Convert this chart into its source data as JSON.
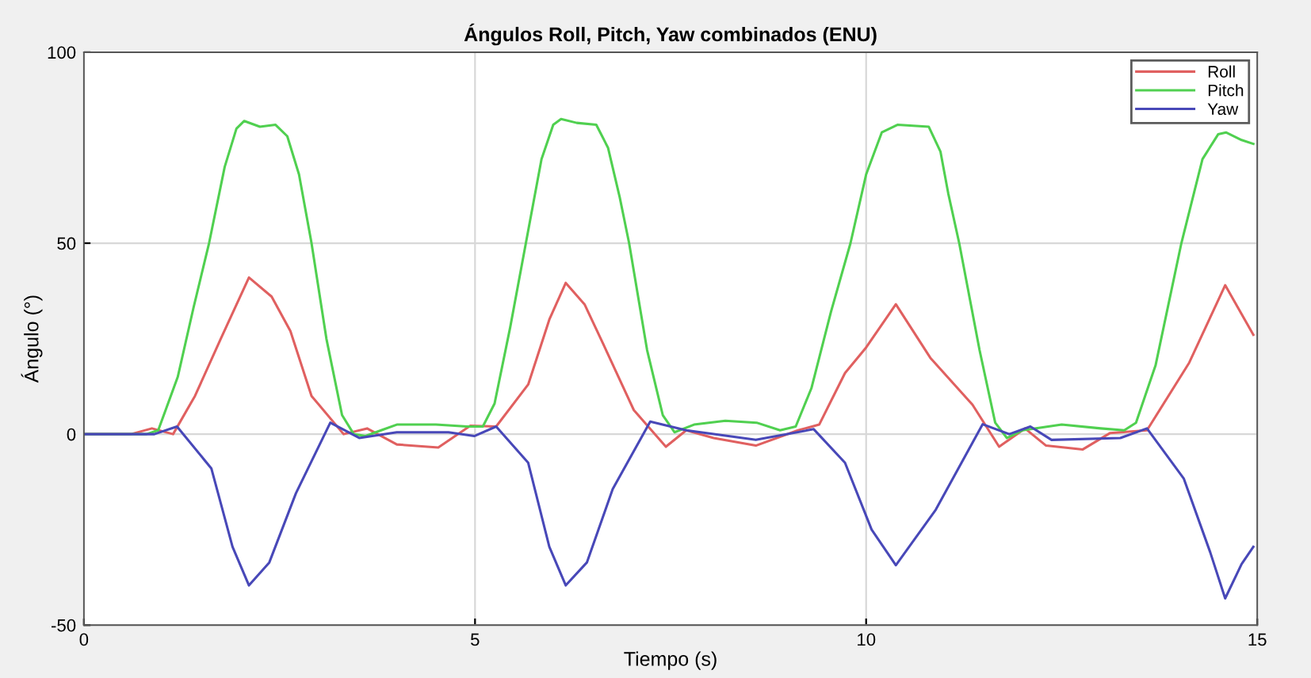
{
  "chart_data": {
    "type": "line",
    "title": "Ángulos Roll, Pitch, Yaw combinados (ENU)",
    "xlabel": "Tiempo (s)",
    "ylabel": "Ángulo (°)",
    "xlim": [
      0,
      15
    ],
    "ylim": [
      -50,
      100
    ],
    "xticks": [
      0,
      5,
      10,
      15
    ],
    "yticks": [
      -50,
      0,
      50,
      100
    ],
    "grid": true,
    "legend": "top right",
    "marker": "none",
    "line_style": "solid",
    "series": [
      {
        "name": "Roll",
        "color": "#e06060",
        "x": [
          0,
          0.6,
          0.87,
          1.14,
          1.42,
          1.75,
          2.11,
          2.4,
          2.64,
          2.91,
          3.32,
          3.62,
          4.0,
          4.53,
          4.94,
          5.27,
          5.68,
          5.95,
          6.16,
          6.4,
          6.63,
          7.03,
          7.44,
          7.7,
          8.05,
          8.59,
          9.13,
          9.4,
          9.73,
          10.0,
          10.38,
          10.82,
          11.36,
          11.7,
          12.03,
          12.3,
          12.77,
          13.12,
          13.59,
          14.13,
          14.59,
          14.95
        ],
        "values": [
          0,
          0,
          1.5,
          0,
          10,
          25,
          41,
          36,
          27,
          10,
          0,
          1.5,
          -2.7,
          -3.5,
          2.2,
          2,
          13,
          30,
          39.6,
          34,
          24,
          6.3,
          -3.3,
          1,
          -1,
          -3,
          1,
          2.5,
          16,
          22.7,
          34,
          20,
          7.7,
          -3.3,
          1.5,
          -3,
          -4,
          0.3,
          1,
          18.7,
          39,
          26
        ]
      },
      {
        "name": "Pitch",
        "color": "#50d050",
        "x": [
          0,
          0.8,
          0.95,
          1.2,
          1.4,
          1.6,
          1.8,
          1.95,
          2.05,
          2.25,
          2.45,
          2.6,
          2.75,
          2.91,
          3.1,
          3.3,
          3.45,
          3.6,
          3.8,
          4.0,
          4.5,
          4.9,
          5.1,
          5.25,
          5.45,
          5.65,
          5.85,
          6.0,
          6.1,
          6.3,
          6.55,
          6.7,
          6.85,
          6.97,
          7.2,
          7.4,
          7.55,
          7.8,
          8.2,
          8.6,
          8.9,
          9.1,
          9.3,
          9.55,
          9.8,
          10.0,
          10.2,
          10.4,
          10.8,
          10.95,
          11.05,
          11.19,
          11.45,
          11.65,
          11.8,
          12.0,
          12.5,
          13.0,
          13.3,
          13.45,
          13.7,
          14.03,
          14.3,
          14.5,
          14.6,
          14.8,
          14.95
        ],
        "values": [
          0,
          0,
          1,
          15,
          33,
          50,
          70,
          80,
          82,
          80.5,
          81,
          78,
          68,
          50,
          25,
          5,
          0,
          -0.5,
          1,
          2.5,
          2.5,
          2,
          2,
          8,
          28,
          50,
          72,
          81,
          82.5,
          81.5,
          81,
          75,
          62,
          50,
          22,
          5,
          0.5,
          2.5,
          3.5,
          3,
          1,
          2,
          12,
          32,
          50,
          68,
          79,
          81,
          80.5,
          74,
          63,
          50,
          22,
          3,
          -1,
          1,
          2.5,
          1.5,
          1,
          3,
          18,
          50,
          72,
          78.5,
          79,
          77,
          76
        ]
      },
      {
        "name": "Yaw",
        "color": "#4848b8",
        "x": [
          0,
          0.9,
          1.19,
          1.63,
          1.9,
          2.11,
          2.37,
          2.71,
          3.15,
          3.52,
          4.0,
          4.66,
          4.99,
          5.27,
          5.68,
          5.95,
          6.16,
          6.43,
          6.76,
          7.24,
          7.7,
          8.59,
          9.33,
          9.73,
          10.07,
          10.38,
          10.89,
          11.49,
          11.83,
          12.1,
          12.37,
          13.25,
          13.59,
          14.06,
          14.4,
          14.59,
          14.8,
          14.95
        ],
        "values": [
          0,
          0,
          2,
          -9,
          -29.5,
          -39.6,
          -33.6,
          -15.5,
          3,
          -1,
          0.5,
          0.5,
          -0.5,
          2,
          -7.5,
          -29.5,
          -39.6,
          -33.6,
          -14.4,
          3.3,
          1,
          -1.5,
          1.3,
          -7.5,
          -25,
          -34.3,
          -19.8,
          2.6,
          0,
          2,
          -1.5,
          -1,
          1.5,
          -11.6,
          -31,
          -43,
          -34,
          -29.5
        ]
      }
    ]
  }
}
